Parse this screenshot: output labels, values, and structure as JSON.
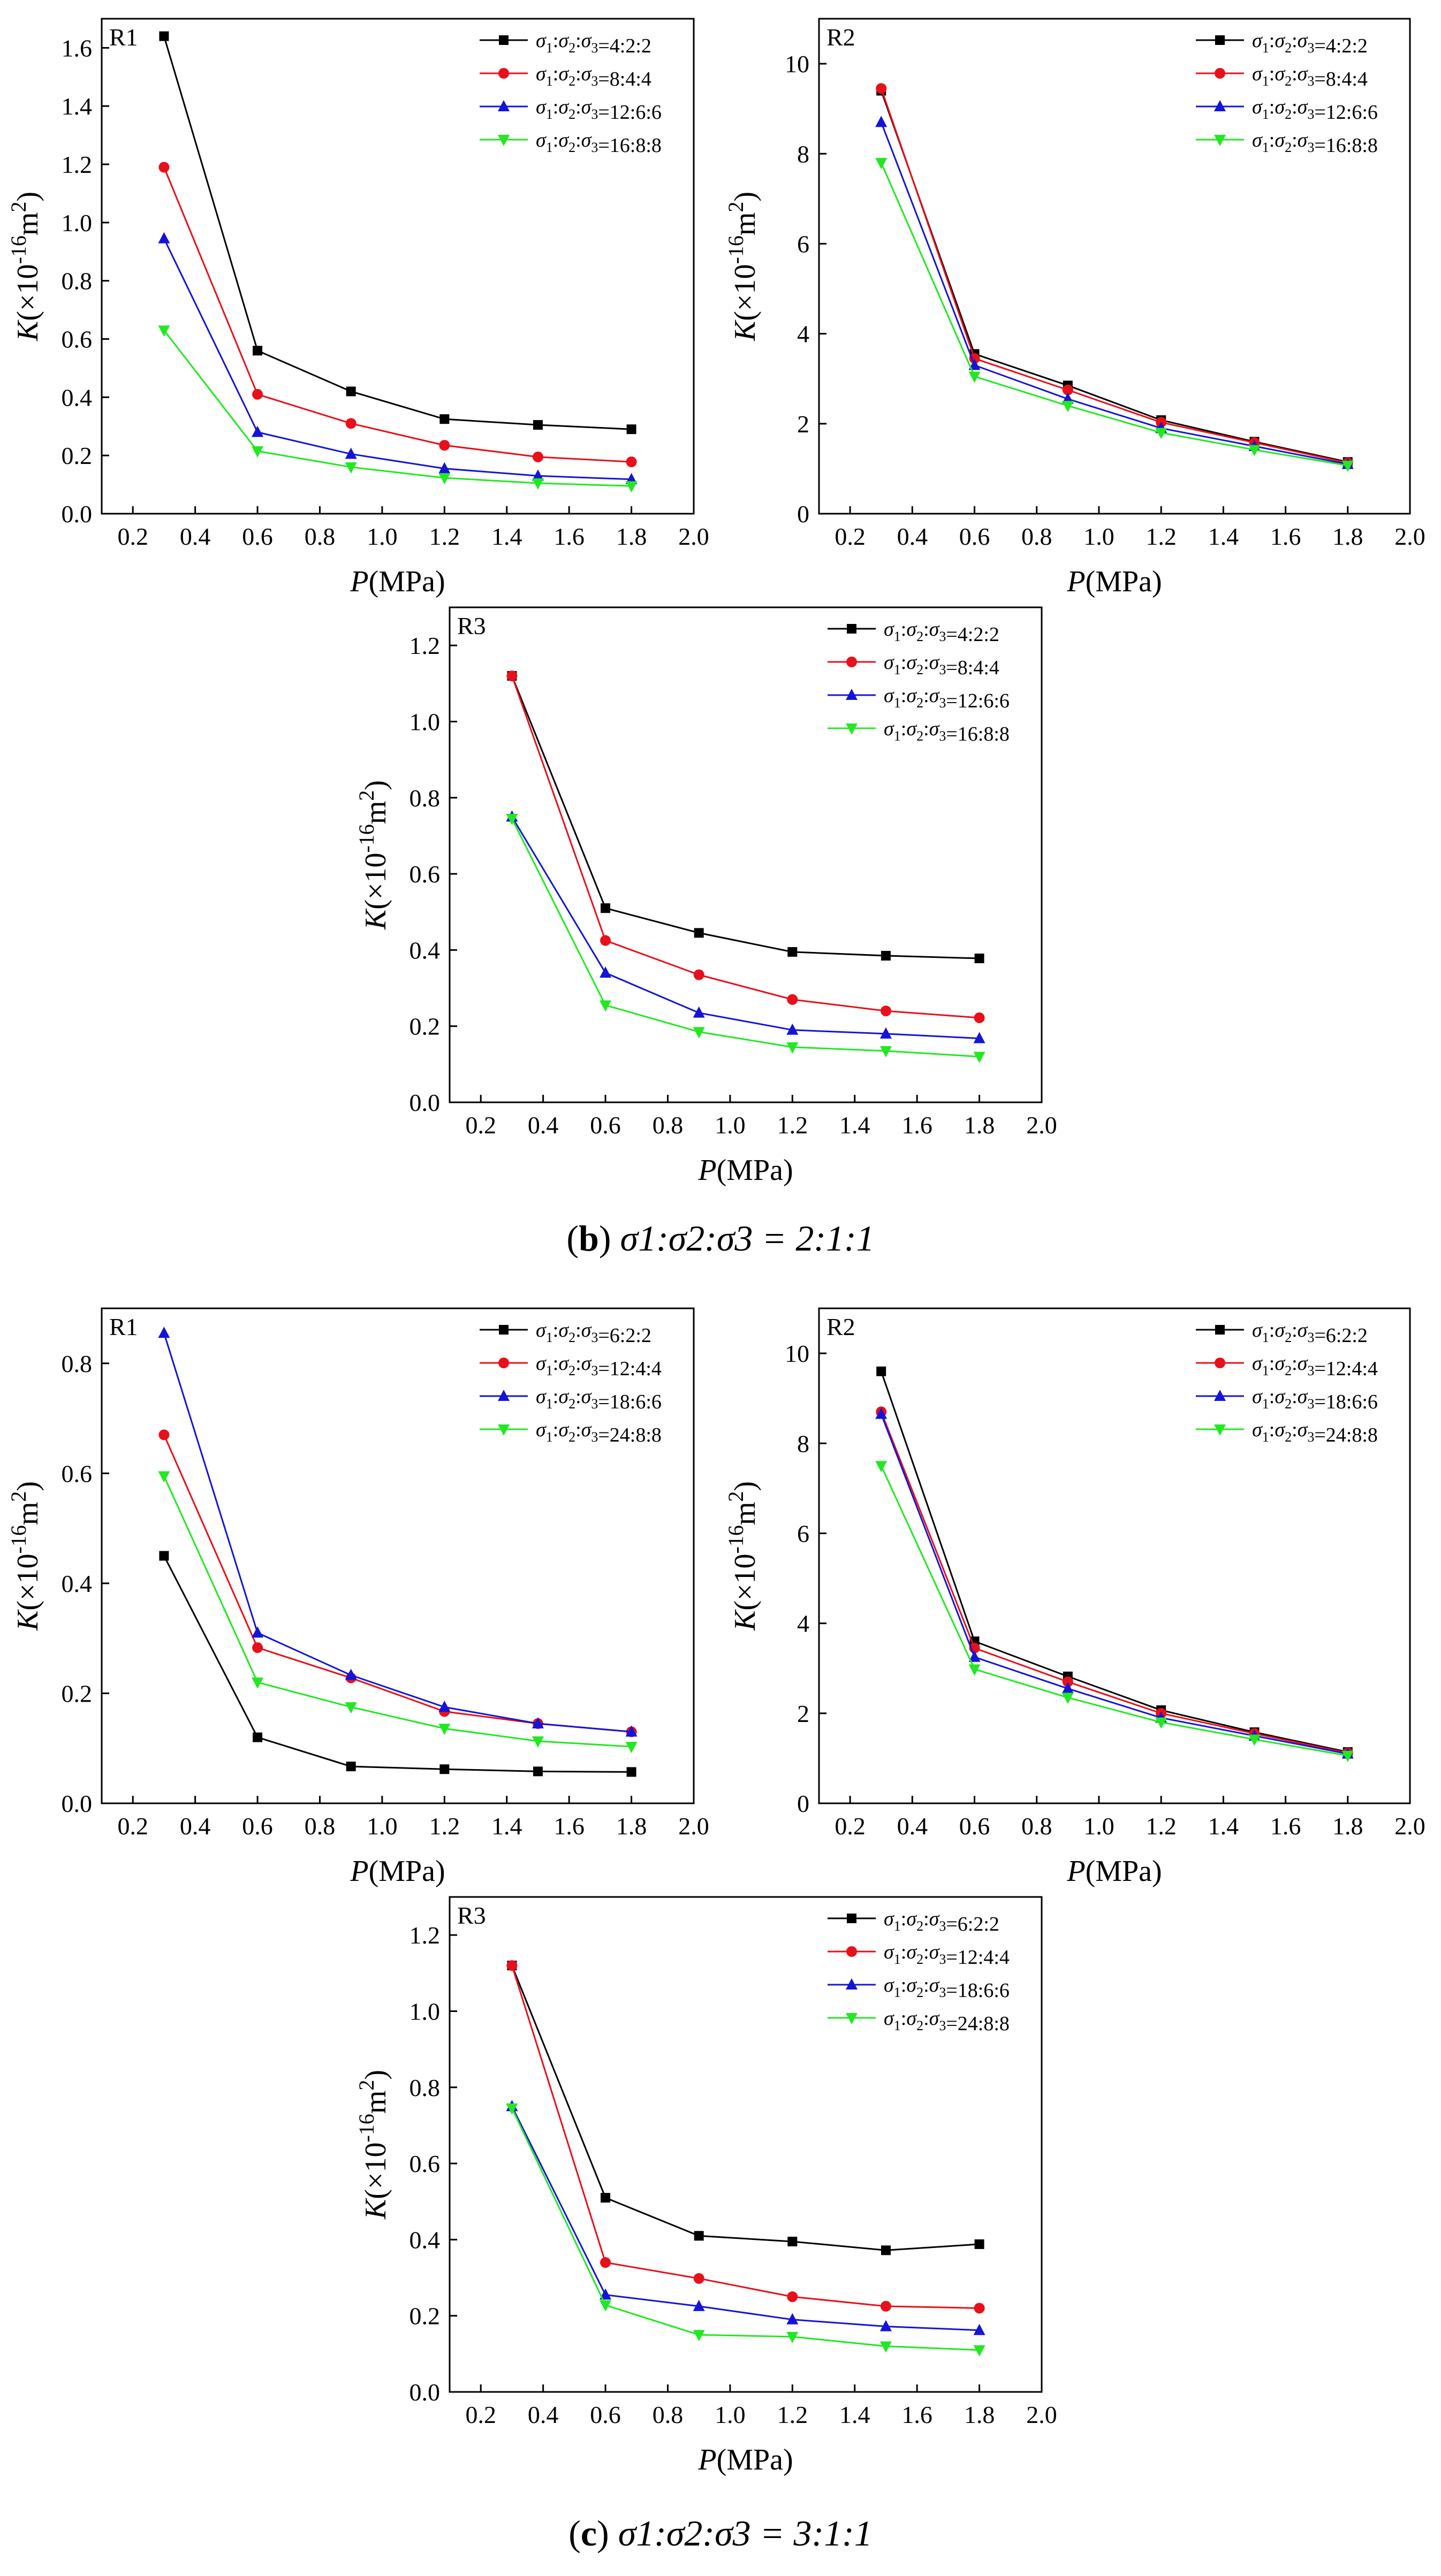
{
  "figure": {
    "caption_b": {
      "label": "b",
      "text": "σ1:σ2:σ3 = 2:1:1"
    },
    "caption_c": {
      "label": "c",
      "text": "σ1:σ2:σ3 = 3:1:1"
    }
  },
  "colors": {
    "black": "#000000",
    "red": "#e8101a",
    "blue": "#1414d8",
    "green": "#22e822"
  },
  "chart_data": [
    {
      "id": "b-R1",
      "type": "line",
      "panel_label": "R1",
      "xlabel": "P(MPa)",
      "ylabel": "K(×10-16m2)",
      "xlim": [
        0.1,
        2.0
      ],
      "ylim": [
        0.0,
        1.7
      ],
      "xticks": [
        "0.2",
        "0.4",
        "0.6",
        "0.8",
        "1.0",
        "1.2",
        "1.4",
        "1.6",
        "1.8",
        "2.0"
      ],
      "yticks": [
        "0.0",
        "0.2",
        "0.4",
        "0.6",
        "0.8",
        "1.0",
        "1.2",
        "1.4",
        "1.6"
      ],
      "ytick_values": [
        0,
        0.2,
        0.4,
        0.6,
        0.8,
        1.0,
        1.2,
        1.4,
        1.6
      ],
      "legend_position": "top-right",
      "x": [
        0.3,
        0.6,
        0.9,
        1.2,
        1.5,
        1.8
      ],
      "series": [
        {
          "name": "σ1:σ2:σ3=4:2:2",
          "color": "black",
          "marker": "square",
          "values": [
            1.64,
            0.56,
            0.42,
            0.325,
            0.305,
            0.29
          ]
        },
        {
          "name": "σ1:σ2:σ3=8:4:4",
          "color": "red",
          "marker": "circle",
          "values": [
            1.19,
            0.41,
            0.31,
            0.235,
            0.195,
            0.178
          ]
        },
        {
          "name": "σ1:σ2:σ3=12:6:6",
          "color": "blue",
          "marker": "triangle-up",
          "values": [
            0.945,
            0.28,
            0.205,
            0.155,
            0.13,
            0.118
          ]
        },
        {
          "name": "σ1:σ2:σ3=16:8:8",
          "color": "green",
          "marker": "triangle-down",
          "values": [
            0.63,
            0.215,
            0.16,
            0.123,
            0.105,
            0.095
          ]
        }
      ]
    },
    {
      "id": "b-R2",
      "type": "line",
      "panel_label": "R2",
      "xlabel": "P(MPa)",
      "ylabel": "K(×10-16m2)",
      "xlim": [
        0.1,
        2.0
      ],
      "ylim": [
        0,
        11
      ],
      "xticks": [
        "0.2",
        "0.4",
        "0.6",
        "0.8",
        "1.0",
        "1.2",
        "1.4",
        "1.6",
        "1.8",
        "2.0"
      ],
      "yticks": [
        "0",
        "2",
        "4",
        "6",
        "8",
        "10"
      ],
      "ytick_values": [
        0,
        2,
        4,
        6,
        8,
        10
      ],
      "legend_position": "top-right",
      "x": [
        0.3,
        0.6,
        0.9,
        1.2,
        1.5,
        1.8
      ],
      "series": [
        {
          "name": "σ1:σ2:σ3=4:2:2",
          "color": "black",
          "marker": "square",
          "values": [
            9.4,
            3.55,
            2.85,
            2.08,
            1.6,
            1.15
          ]
        },
        {
          "name": "σ1:σ2:σ3=8:4:4",
          "color": "red",
          "marker": "circle",
          "values": [
            9.45,
            3.45,
            2.75,
            2.03,
            1.58,
            1.13
          ]
        },
        {
          "name": "σ1:σ2:σ3=12:6:6",
          "color": "blue",
          "marker": "triangle-up",
          "values": [
            8.7,
            3.3,
            2.55,
            1.9,
            1.5,
            1.1
          ]
        },
        {
          "name": "σ1:σ2:σ3=16:8:8",
          "color": "green",
          "marker": "triangle-down",
          "values": [
            7.8,
            3.05,
            2.4,
            1.8,
            1.42,
            1.07
          ]
        }
      ]
    },
    {
      "id": "b-R3",
      "type": "line",
      "panel_label": "R3",
      "xlabel": "P(MPa)",
      "ylabel": "K(×10-16m2)",
      "xlim": [
        0.1,
        2.0
      ],
      "ylim": [
        0.0,
        1.3
      ],
      "xticks": [
        "0.2",
        "0.4",
        "0.6",
        "0.8",
        "1.0",
        "1.2",
        "1.4",
        "1.6",
        "1.8",
        "2.0"
      ],
      "yticks": [
        "0.0",
        "0.2",
        "0.4",
        "0.6",
        "0.8",
        "1.0",
        "1.2"
      ],
      "ytick_values": [
        0,
        0.2,
        0.4,
        0.6,
        0.8,
        1.0,
        1.2
      ],
      "legend_position": "top-right",
      "x": [
        0.3,
        0.6,
        0.9,
        1.2,
        1.5,
        1.8
      ],
      "series": [
        {
          "name": "σ1:σ2:σ3=4:2:2",
          "color": "black",
          "marker": "square",
          "values": [
            1.12,
            0.51,
            0.445,
            0.395,
            0.385,
            0.378
          ]
        },
        {
          "name": "σ1:σ2:σ3=8:4:4",
          "color": "red",
          "marker": "circle",
          "values": [
            1.12,
            0.425,
            0.335,
            0.27,
            0.24,
            0.222
          ]
        },
        {
          "name": "σ1:σ2:σ3=12:6:6",
          "color": "blue",
          "marker": "triangle-up",
          "values": [
            0.75,
            0.34,
            0.235,
            0.19,
            0.18,
            0.168
          ]
        },
        {
          "name": "σ1:σ2:σ3=16:8:8",
          "color": "green",
          "marker": "triangle-down",
          "values": [
            0.745,
            0.255,
            0.185,
            0.145,
            0.135,
            0.12
          ]
        }
      ]
    },
    {
      "id": "c-R1",
      "type": "line",
      "panel_label": "R1",
      "xlabel": "P(MPa)",
      "ylabel": "K(×10-16m2)",
      "xlim": [
        0.1,
        2.0
      ],
      "ylim": [
        0.0,
        0.9
      ],
      "xticks": [
        "0.2",
        "0.4",
        "0.6",
        "0.8",
        "1.0",
        "1.2",
        "1.4",
        "1.6",
        "1.8",
        "2.0"
      ],
      "yticks": [
        "0.0",
        "0.2",
        "0.4",
        "0.6",
        "0.8"
      ],
      "ytick_values": [
        0,
        0.2,
        0.4,
        0.6,
        0.8
      ],
      "legend_position": "top-right",
      "x": [
        0.3,
        0.6,
        0.9,
        1.2,
        1.5,
        1.8
      ],
      "series": [
        {
          "name": "σ1:σ2:σ3=6:2:2",
          "color": "black",
          "marker": "square",
          "values": [
            0.45,
            0.12,
            0.067,
            0.062,
            0.058,
            0.057
          ]
        },
        {
          "name": "σ1:σ2:σ3=12:4:4",
          "color": "red",
          "marker": "circle",
          "values": [
            0.67,
            0.283,
            0.228,
            0.167,
            0.145,
            0.13
          ]
        },
        {
          "name": "σ1:σ2:σ3=18:6:6",
          "color": "blue",
          "marker": "triangle-up",
          "values": [
            0.855,
            0.31,
            0.233,
            0.175,
            0.145,
            0.13
          ]
        },
        {
          "name": "σ1:σ2:σ3=24:8:8",
          "color": "green",
          "marker": "triangle-down",
          "values": [
            0.595,
            0.22,
            0.175,
            0.136,
            0.113,
            0.103
          ]
        }
      ]
    },
    {
      "id": "c-R2",
      "type": "line",
      "panel_label": "R2",
      "xlabel": "P(MPa)",
      "ylabel": "K(×10-16m2)",
      "xlim": [
        0.1,
        2.0
      ],
      "ylim": [
        0,
        11
      ],
      "xticks": [
        "0.2",
        "0.4",
        "0.6",
        "0.8",
        "1.0",
        "1.2",
        "1.4",
        "1.6",
        "1.8",
        "2.0"
      ],
      "yticks": [
        "0",
        "2",
        "4",
        "6",
        "8",
        "10"
      ],
      "ytick_values": [
        0,
        2,
        4,
        6,
        8,
        10
      ],
      "legend_position": "top-right",
      "x": [
        0.3,
        0.6,
        0.9,
        1.2,
        1.5,
        1.8
      ],
      "series": [
        {
          "name": "σ1:σ2:σ3=6:2:2",
          "color": "black",
          "marker": "square",
          "values": [
            9.6,
            3.6,
            2.82,
            2.07,
            1.58,
            1.14
          ]
        },
        {
          "name": "σ1:σ2:σ3=12:4:4",
          "color": "red",
          "marker": "circle",
          "values": [
            8.7,
            3.45,
            2.7,
            2.0,
            1.55,
            1.12
          ]
        },
        {
          "name": "σ1:σ2:σ3=18:6:6",
          "color": "blue",
          "marker": "triangle-up",
          "values": [
            8.65,
            3.25,
            2.55,
            1.9,
            1.5,
            1.1
          ]
        },
        {
          "name": "σ1:σ2:σ3=24:8:8",
          "color": "green",
          "marker": "triangle-down",
          "values": [
            7.5,
            2.98,
            2.35,
            1.8,
            1.42,
            1.06
          ]
        }
      ]
    },
    {
      "id": "c-R3",
      "type": "line",
      "panel_label": "R3",
      "xlabel": "P(MPa)",
      "ylabel": "K(×10-16m2)",
      "xlim": [
        0.1,
        2.0
      ],
      "ylim": [
        0.0,
        1.3
      ],
      "xticks": [
        "0.2",
        "0.4",
        "0.6",
        "0.8",
        "1.0",
        "1.2",
        "1.4",
        "1.6",
        "1.8",
        "2.0"
      ],
      "yticks": [
        "0.0",
        "0.2",
        "0.4",
        "0.6",
        "0.8",
        "1.0",
        "1.2"
      ],
      "ytick_values": [
        0,
        0.2,
        0.4,
        0.6,
        0.8,
        1.0,
        1.2
      ],
      "legend_position": "top-right",
      "x": [
        0.3,
        0.6,
        0.9,
        1.2,
        1.5,
        1.8
      ],
      "series": [
        {
          "name": "σ1:σ2:σ3=6:2:2",
          "color": "black",
          "marker": "square",
          "values": [
            1.12,
            0.51,
            0.41,
            0.395,
            0.372,
            0.388
          ]
        },
        {
          "name": "σ1:σ2:σ3=12:4:4",
          "color": "red",
          "marker": "circle",
          "values": [
            1.12,
            0.34,
            0.298,
            0.25,
            0.225,
            0.22
          ]
        },
        {
          "name": "σ1:σ2:σ3=18:6:6",
          "color": "blue",
          "marker": "triangle-up",
          "values": [
            0.75,
            0.255,
            0.225,
            0.19,
            0.172,
            0.162
          ]
        },
        {
          "name": "σ1:σ2:σ3=24:8:8",
          "color": "green",
          "marker": "triangle-down",
          "values": [
            0.745,
            0.228,
            0.15,
            0.145,
            0.12,
            0.11
          ]
        }
      ]
    }
  ]
}
